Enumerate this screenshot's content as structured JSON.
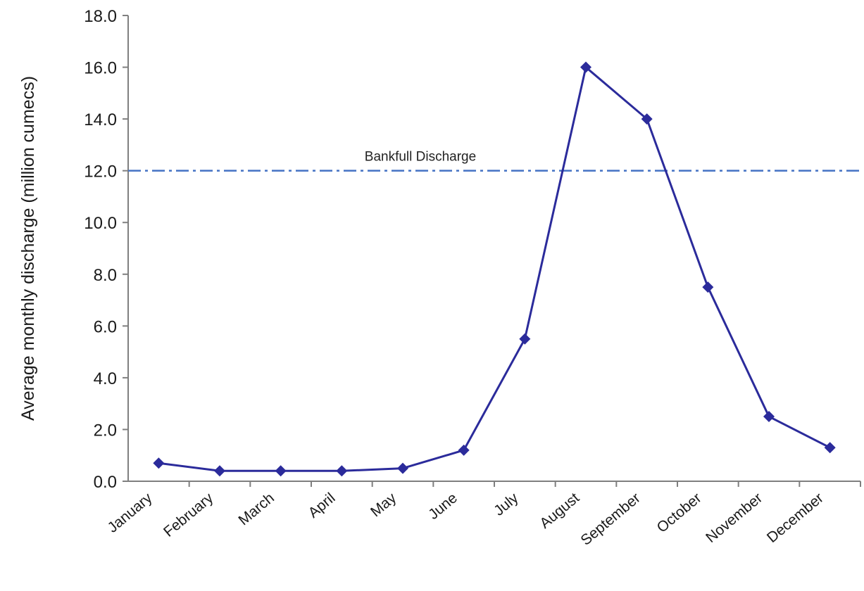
{
  "chart_data": {
    "type": "line",
    "title": "",
    "xlabel": "",
    "ylabel": "Average monthly discharge (million cumecs)",
    "categories": [
      "January",
      "February",
      "March",
      "April",
      "May",
      "June",
      "July",
      "August",
      "September",
      "October",
      "November",
      "December"
    ],
    "series": [
      {
        "values": [
          0.7,
          0.4,
          0.4,
          0.4,
          0.5,
          1.2,
          5.5,
          16.0,
          14.0,
          7.5,
          2.5,
          1.3
        ]
      }
    ],
    "ylim": [
      0,
      18
    ],
    "yticks": [
      "0.0",
      "2.0",
      "4.0",
      "6.0",
      "8.0",
      "10.0",
      "12.0",
      "14.0",
      "16.0",
      "18.0"
    ],
    "grid": false,
    "legend": "none",
    "reference_line": {
      "value": 12.0,
      "label": "Bankfull Discharge",
      "style": "dash-dot",
      "color": "#4472c4"
    },
    "colors": {
      "series": "#2b2b9b",
      "axis": "#7f7f7f"
    }
  }
}
